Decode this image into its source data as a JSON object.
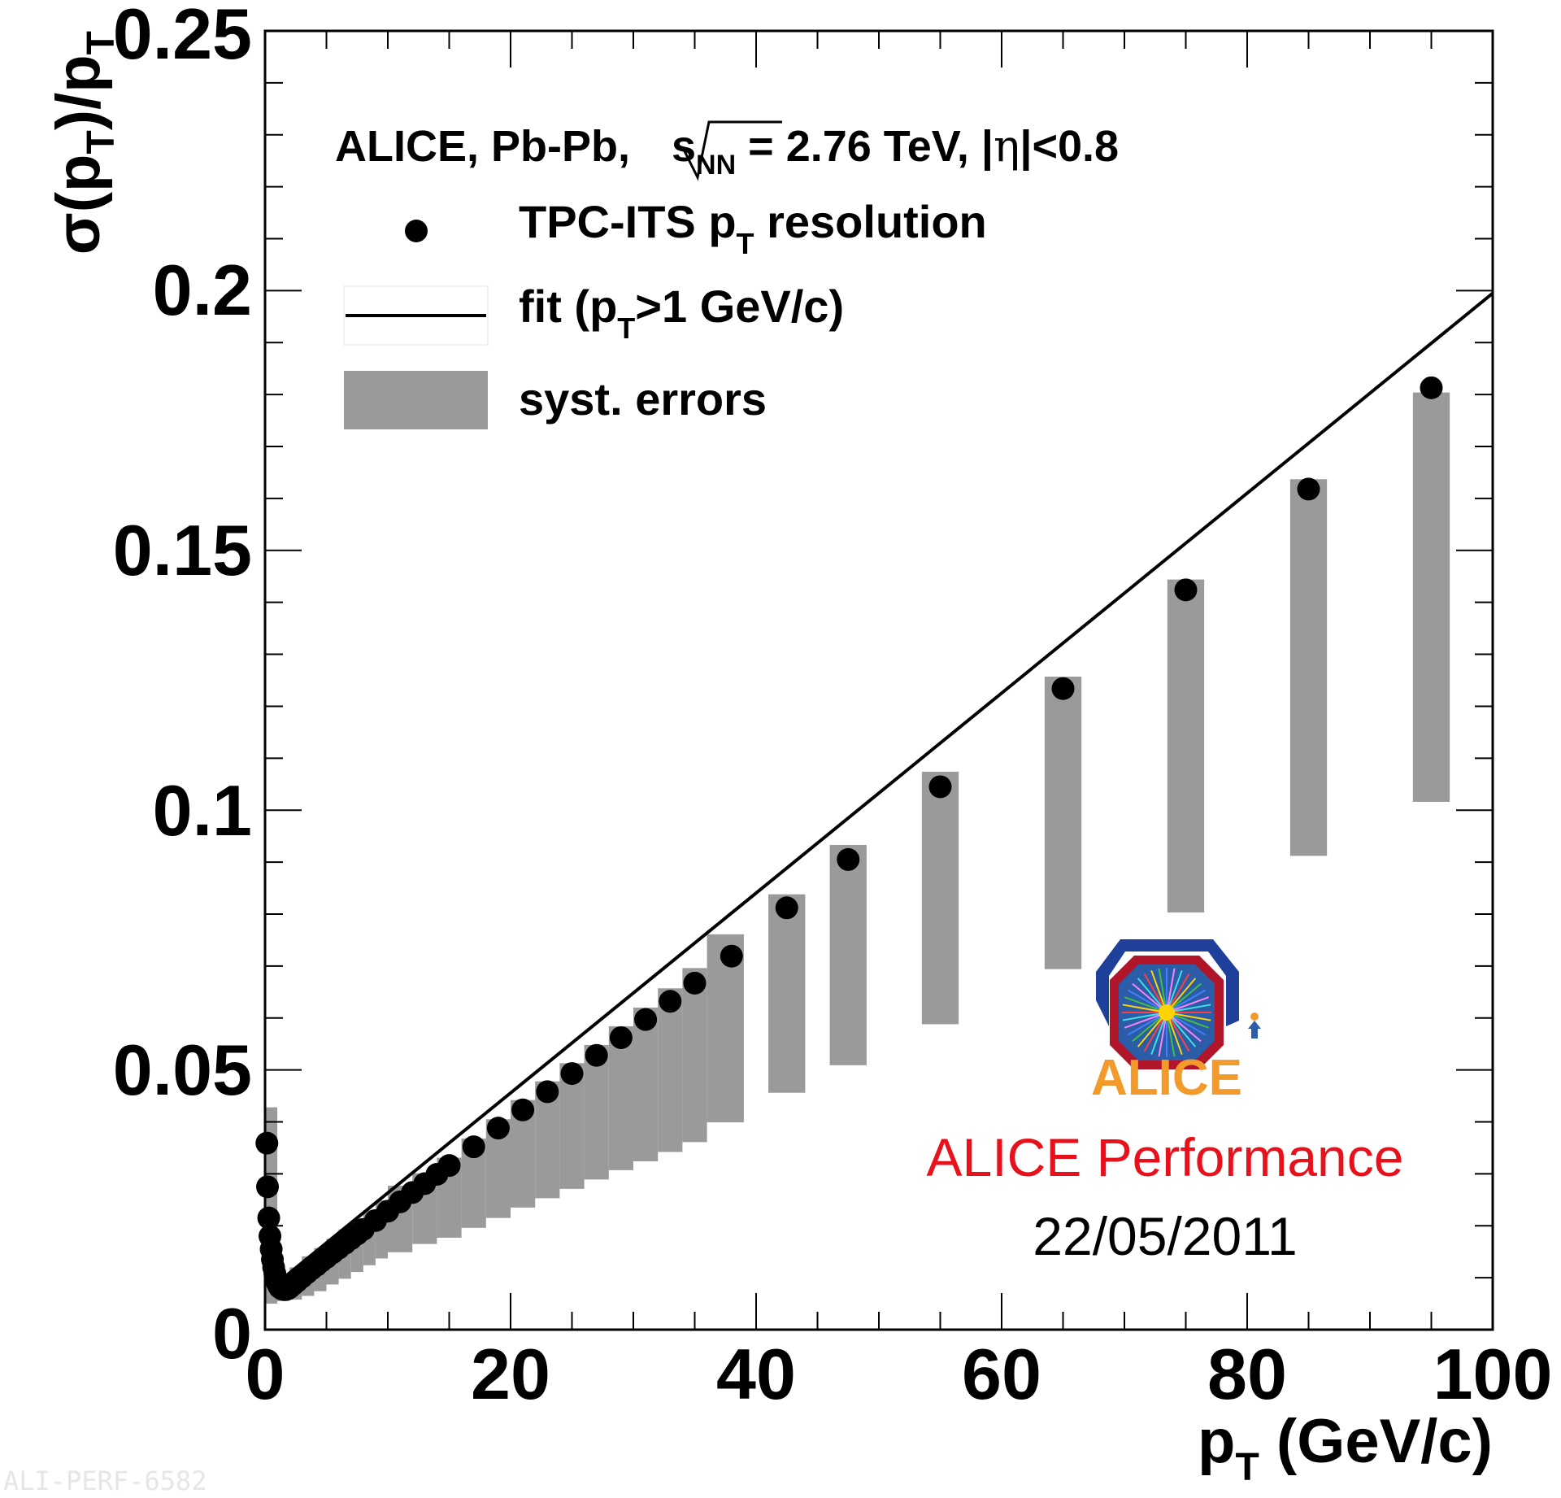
{
  "chart_data": {
    "type": "scatter",
    "header": {
      "pre": "ALICE, Pb-Pb, ",
      "sqrt_sub": "NN",
      "post": " = 2.76 TeV, |",
      "eta": "η",
      "tail": "|<0.8"
    },
    "xlabel": {
      "main": "p",
      "sub": "T",
      "rest": " (GeV/c)"
    },
    "ylabel": {
      "a": "σ(p",
      "b": "T",
      "c": ")/p",
      "d": "T"
    },
    "xlim": [
      0,
      100
    ],
    "ylim": [
      0,
      0.25
    ],
    "x_ticks": [
      "0",
      "20",
      "40",
      "60",
      "80",
      "100"
    ],
    "y_ticks": [
      "0",
      "0.05",
      "0.1",
      "0.15",
      "0.2",
      "0.25"
    ],
    "legend": {
      "points": {
        "pre": "TPC-ITS p",
        "sub": "T",
        "post": " resolution"
      },
      "fit": {
        "pre": "fit (p",
        "sub": "T",
        "post": ">1 GeV/c)"
      },
      "syst": "syst. errors"
    },
    "series": [
      {
        "name": "TPC-ITS pT resolution",
        "kind": "points",
        "x": [
          0.15,
          0.2,
          0.3,
          0.4,
          0.5,
          0.6,
          0.7,
          0.8,
          0.9,
          1.0,
          1.1,
          1.2,
          1.4,
          1.6,
          1.8,
          2.0,
          2.3,
          2.6,
          3.0,
          3.4,
          3.8,
          4.2,
          4.6,
          5.0,
          5.5,
          6.0,
          6.5,
          7.0,
          7.5,
          8.0,
          9.0,
          10,
          11,
          12,
          13,
          14,
          15,
          17,
          19,
          21,
          23,
          25,
          27,
          29,
          31,
          33,
          35,
          38,
          42.5,
          47.5,
          55,
          65,
          75,
          85,
          95
        ],
        "y": [
          0.0359,
          0.0275,
          0.0215,
          0.018,
          0.0155,
          0.0135,
          0.012,
          0.0108,
          0.0098,
          0.009,
          0.0085,
          0.0081,
          0.0078,
          0.0077,
          0.0078,
          0.0081,
          0.0087,
          0.0093,
          0.0101,
          0.0109,
          0.0117,
          0.0124,
          0.0132,
          0.0139,
          0.0148,
          0.0157,
          0.0166,
          0.0175,
          0.0184,
          0.0193,
          0.021,
          0.0228,
          0.0246,
          0.0264,
          0.0281,
          0.0299,
          0.0316,
          0.0352,
          0.0388,
          0.0423,
          0.0458,
          0.0493,
          0.0528,
          0.0562,
          0.0597,
          0.0632,
          0.0667,
          0.0719,
          0.0812,
          0.0905,
          0.1045,
          0.1234,
          0.1424,
          0.1618,
          0.1813
        ]
      },
      {
        "name": "fit (pT>1 GeV/c)",
        "kind": "line",
        "x": [
          1,
          100
        ],
        "y": [
          0.009,
          0.1995
        ]
      },
      {
        "name": "syst. errors",
        "kind": "bands",
        "color": "#9a9a9a",
        "bands": [
          {
            "x": [
              0.1,
              1.0
            ],
            "y": [
              0.005,
              0.0428
            ]
          },
          {
            "x": [
              1.0,
              2.0
            ],
            "y": [
              0.0055,
              0.0105
            ]
          },
          {
            "x": [
              2.0,
              3.0
            ],
            "y": [
              0.0058,
              0.012
            ]
          },
          {
            "x": [
              3.0,
              4.0
            ],
            "y": [
              0.0065,
              0.0141
            ]
          },
          {
            "x": [
              4.0,
              5.0
            ],
            "y": [
              0.0074,
              0.0157
            ]
          },
          {
            "x": [
              5.0,
              6.0
            ],
            "y": [
              0.0087,
              0.0175
            ]
          },
          {
            "x": [
              6.0,
              7.0
            ],
            "y": [
              0.0098,
              0.0193
            ]
          },
          {
            "x": [
              7.0,
              8.0
            ],
            "y": [
              0.0111,
              0.0211
            ]
          },
          {
            "x": [
              8.0,
              9.0
            ],
            "y": [
              0.0124,
              0.023
            ]
          },
          {
            "x": [
              9.0,
              10.0
            ],
            "y": [
              0.0137,
              0.0249
            ]
          },
          {
            "x": [
              10.0,
              12.0
            ],
            "y": [
              0.0149,
              0.0277
            ]
          },
          {
            "x": [
              12.0,
              14.0
            ],
            "y": [
              0.0165,
              0.0301
            ]
          },
          {
            "x": [
              14.0,
              16.0
            ],
            "y": [
              0.0177,
              0.0331
            ]
          },
          {
            "x": [
              16.0,
              18.0
            ],
            "y": [
              0.0196,
              0.0368
            ]
          },
          {
            "x": [
              18.0,
              20.0
            ],
            "y": [
              0.0215,
              0.0405
            ]
          },
          {
            "x": [
              20.0,
              22.0
            ],
            "y": [
              0.0235,
              0.0442
            ]
          },
          {
            "x": [
              22.0,
              24.0
            ],
            "y": [
              0.0253,
              0.0478
            ]
          },
          {
            "x": [
              24.0,
              26.0
            ],
            "y": [
              0.0271,
              0.0513
            ]
          },
          {
            "x": [
              26.0,
              28.0
            ],
            "y": [
              0.0289,
              0.0548
            ]
          },
          {
            "x": [
              28.0,
              30.0
            ],
            "y": [
              0.0307,
              0.0584
            ]
          },
          {
            "x": [
              30.0,
              32.0
            ],
            "y": [
              0.0324,
              0.062
            ]
          },
          {
            "x": [
              32.0,
              34.0
            ],
            "y": [
              0.0342,
              0.0657
            ]
          },
          {
            "x": [
              34.0,
              36.0
            ],
            "y": [
              0.0361,
              0.0696
            ]
          },
          {
            "x": [
              36.0,
              39.0
            ],
            "y": [
              0.0399,
              0.0761
            ]
          },
          {
            "x": [
              41.0,
              44.0
            ],
            "y": [
              0.0456,
              0.0838
            ]
          },
          {
            "x": [
              46.0,
              49.0
            ],
            "y": [
              0.0509,
              0.0933
            ]
          },
          {
            "x": [
              53.5,
              56.5
            ],
            "y": [
              0.0588,
              0.1074
            ]
          },
          {
            "x": [
              63.5,
              66.5
            ],
            "y": [
              0.0694,
              0.1257
            ]
          },
          {
            "x": [
              73.5,
              76.5
            ],
            "y": [
              0.0803,
              0.1444
            ]
          },
          {
            "x": [
              83.5,
              86.5
            ],
            "y": [
              0.0912,
              0.1637
            ]
          },
          {
            "x": [
              93.5,
              96.5
            ],
            "y": [
              0.1016,
              0.1804
            ]
          }
        ]
      }
    ],
    "grid": false,
    "legend_placement": "top-left"
  },
  "annotations": {
    "performance": "ALICE Performance",
    "date": "22/05/2011",
    "logo_text": "ALICE",
    "watermark": "ALI-PERF-6582"
  },
  "colors": {
    "syst_band": "#9a9a9a",
    "marker": "#000000",
    "performance_text": "#e8101a",
    "logo_orange": "#f39a2c",
    "logo_blue": "#1e3f9a",
    "logo_red": "#b0152a"
  }
}
